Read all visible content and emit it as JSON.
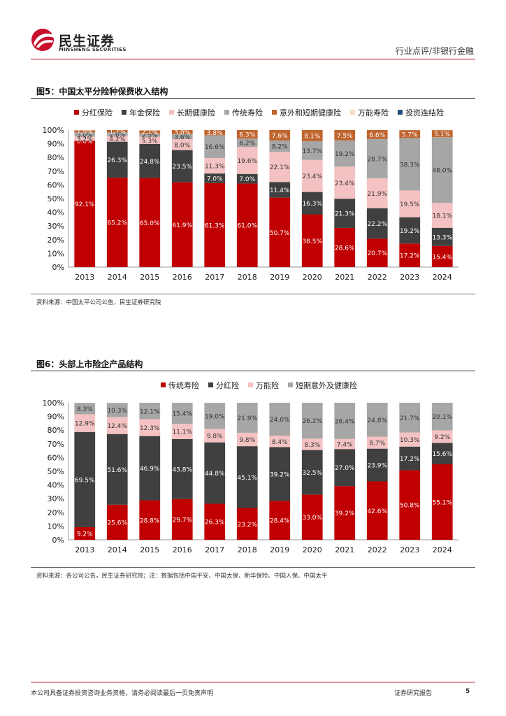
{
  "header": {
    "logo_cn": "民生证券",
    "logo_en": "MINSHENG SECURITIES",
    "category": "行业点评/非银行金融"
  },
  "figure5": {
    "title": "图5：中国太平分险种保费收入结构",
    "source": "资料来源：中国太平公司公告，民生证券研究院",
    "chart_data": {
      "type": "bar",
      "stacked": true,
      "categories": [
        "2013",
        "2014",
        "2015",
        "2016",
        "2017",
        "2018",
        "2019",
        "2020",
        "2021",
        "2022",
        "2023",
        "2024"
      ],
      "ylim": [
        0,
        100
      ],
      "yticks": [
        "0%",
        "10%",
        "20%",
        "30%",
        "40%",
        "50%",
        "60%",
        "70%",
        "80%",
        "90%",
        "100%"
      ],
      "legend_position": "top",
      "series": [
        {
          "name": "分红保险",
          "color": "#c00000",
          "label_color": "#ffffff",
          "values": [
            92.1,
            65.2,
            65.0,
            61.9,
            61.3,
            61.0,
            50.7,
            38.5,
            28.6,
            20.7,
            17.2,
            15.4
          ],
          "labels": [
            "92.1%",
            "65.2%",
            "65.0%",
            "61.9%",
            "61.3%",
            "61.0%",
            "50.7%",
            "38.5%",
            "28.6%",
            "20.7%",
            "17.2%",
            "15.4%"
          ]
        },
        {
          "name": "年金保险",
          "color": "#404040",
          "label_color": "#ffffff",
          "values": [
            0.0,
            26.3,
            24.8,
            23.5,
            7.0,
            7.0,
            11.4,
            16.3,
            21.3,
            22.2,
            19.2,
            13.3
          ],
          "labels": [
            "0.0%",
            "26.3%",
            "24.8%",
            "23.5%",
            "7.0%",
            "7.0%",
            "11.4%",
            "16.3%",
            "21.3%",
            "22.2%",
            "19.2%",
            "13.3%"
          ]
        },
        {
          "name": "长期健康险",
          "color": "#f4c2c2",
          "label_color": "#333333",
          "values": [
            3.2,
            4.2,
            5.3,
            8.0,
            11.3,
            19.6,
            22.1,
            23.4,
            23.4,
            21.9,
            19.5,
            18.1
          ],
          "labels": [
            "3.2%",
            "4.2%",
            "5.3%",
            "8.0%",
            "11.3%",
            "19.6%",
            "22.1%",
            "23.4%",
            "23.4%",
            "21.9%",
            "19.5%",
            "18.1%"
          ]
        },
        {
          "name": "传统寿险",
          "color": "#a6a6a6",
          "label_color": "#333333",
          "values": [
            3.0,
            2.6,
            2.5,
            3.6,
            16.6,
            6.2,
            8.2,
            13.7,
            19.2,
            28.7,
            38.3,
            48.0
          ],
          "labels": [
            "3.0%",
            "2.6%",
            "2.5%",
            "3.6%",
            "16.6%",
            "6.2%",
            "8.2%",
            "13.7%",
            "19.2%",
            "28.7%",
            "38.3%",
            "48.0%"
          ]
        },
        {
          "name": "意外和短期健康险",
          "color": "#c0652f",
          "label_color": "#ffffff",
          "values": [
            1.5,
            1.7,
            2.1,
            3.0,
            3.8,
            6.3,
            7.6,
            8.1,
            7.5,
            6.6,
            5.7,
            5.1
          ],
          "labels": [
            "1.5%",
            "1.7%",
            "2.1%",
            "3.0%",
            "3.8%",
            "6.3%",
            "7.6%",
            "8.1%",
            "7.5%",
            "6.6%",
            "5.7%",
            "5.1%"
          ]
        },
        {
          "name": "万能寿险",
          "color": "#f2dcc6",
          "label_color": "#333333",
          "values": [
            0.2,
            0.0,
            0.3,
            0.0,
            0.0,
            0.0,
            0.0,
            0.0,
            0.0,
            0.0,
            0.0,
            0.0
          ],
          "labels": [
            "",
            "",
            "",
            "",
            "",
            "",
            "",
            "",
            "",
            "",
            "",
            ""
          ]
        },
        {
          "name": "投资连结险",
          "color": "#1f4e79",
          "label_color": "#ffffff",
          "values": [
            0,
            0,
            0,
            0,
            0,
            0,
            0,
            0,
            0,
            0,
            0,
            0
          ],
          "labels": [
            "",
            "",
            "",
            "",
            "",
            "",
            "",
            "",
            "",
            "",
            "",
            ""
          ]
        }
      ]
    }
  },
  "figure6": {
    "title": "图6：头部上市险企产品结构",
    "source": "资料来源：各公司公告，民生证券研究院；注：数据包括中国平安、中国太保、新华保险、中国人保、中国太平",
    "chart_data": {
      "type": "bar",
      "stacked": true,
      "categories": [
        "2013",
        "2014",
        "2015",
        "2016",
        "2017",
        "2018",
        "2019",
        "2020",
        "2021",
        "2022",
        "2023",
        "2024"
      ],
      "ylim": [
        0,
        100
      ],
      "yticks": [
        "0%",
        "10%",
        "20%",
        "30%",
        "40%",
        "50%",
        "60%",
        "70%",
        "80%",
        "90%",
        "100%"
      ],
      "legend_position": "top",
      "series": [
        {
          "name": "传统寿险",
          "color": "#c00000",
          "label_color": "#ffffff",
          "values": [
            9.2,
            25.6,
            28.8,
            29.7,
            26.3,
            23.2,
            28.4,
            33.0,
            39.2,
            42.6,
            50.8,
            55.1
          ],
          "labels": [
            "9.2%",
            "25.6%",
            "28.8%",
            "29.7%",
            "26.3%",
            "23.2%",
            "28.4%",
            "33.0%",
            "39.2%",
            "42.6%",
            "50.8%",
            "55.1%"
          ]
        },
        {
          "name": "分红险",
          "color": "#404040",
          "label_color": "#ffffff",
          "values": [
            69.5,
            51.6,
            46.9,
            43.8,
            44.8,
            45.1,
            39.2,
            32.5,
            27.0,
            23.9,
            17.2,
            15.6
          ],
          "labels": [
            "69.5%",
            "51.6%",
            "46.9%",
            "43.8%",
            "44.8%",
            "45.1%",
            "39.2%",
            "32.5%",
            "27.0%",
            "23.9%",
            "17.2%",
            "15.6%"
          ]
        },
        {
          "name": "万能险",
          "color": "#f4c2c2",
          "label_color": "#333333",
          "values": [
            12.9,
            12.4,
            12.3,
            11.1,
            9.8,
            9.8,
            8.4,
            8.3,
            7.4,
            8.7,
            10.3,
            9.2
          ],
          "labels": [
            "12.9%",
            "12.4%",
            "12.3%",
            "11.1%",
            "9.8%",
            "9.8%",
            "8.4%",
            "8.3%",
            "7.4%",
            "8.7%",
            "10.3%",
            "9.2%"
          ]
        },
        {
          "name": "短期意外及健康险",
          "color": "#a6a6a6",
          "label_color": "#333333",
          "values": [
            8.3,
            10.3,
            12.1,
            15.4,
            19.0,
            21.9,
            24.0,
            26.2,
            26.4,
            24.8,
            21.7,
            20.1
          ],
          "labels": [
            "8.3%",
            "10.3%",
            "12.1%",
            "15.4%",
            "19.0%",
            "21.9%",
            "24.0%",
            "26.2%",
            "26.4%",
            "24.8%",
            "21.7%",
            "20.1%"
          ]
        }
      ]
    }
  },
  "footer": {
    "disclaimer": "本公司具备证券投资咨询业务资格，请务必阅读最后一页免责声明",
    "report_type": "证券研究报告",
    "page_number": "5"
  }
}
